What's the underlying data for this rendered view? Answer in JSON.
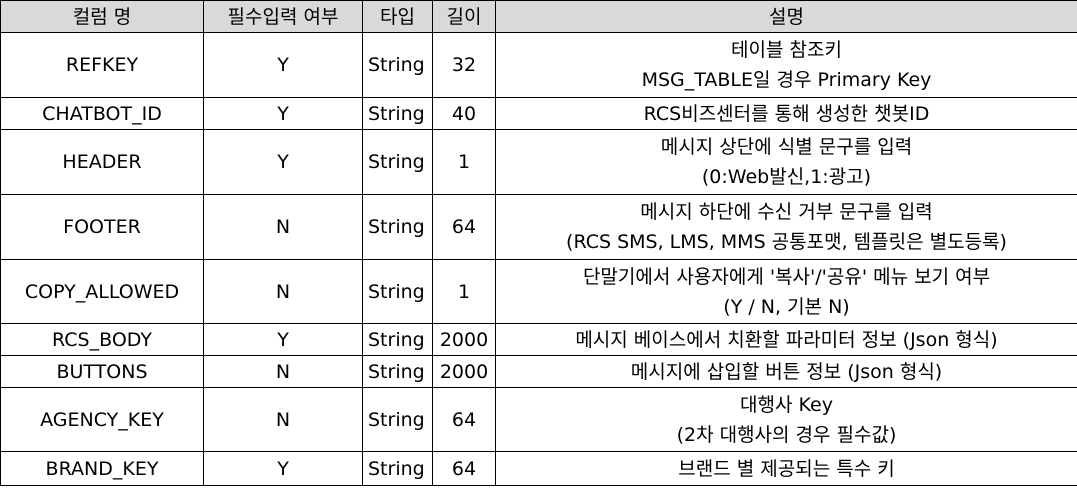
{
  "table": {
    "headers": {
      "column": "컬럼 명",
      "required": "필수입력 여부",
      "type": "타입",
      "length": "길이",
      "description": "설명"
    },
    "rows": [
      {
        "column": "REFKEY",
        "required": "Y",
        "type": "String",
        "length": "32",
        "desc": [
          "테이블 참조키",
          "MSG_TABLE일 경우 Primary Key"
        ]
      },
      {
        "column": "CHATBOT_ID",
        "required": "Y",
        "type": "String",
        "length": "40",
        "desc": [
          "RCS비즈센터를 통해 생성한 챗봇ID"
        ]
      },
      {
        "column": "HEADER",
        "required": "Y",
        "type": "String",
        "length": "1",
        "desc": [
          "메시지 상단에 식별 문구를 입력",
          "(0:Web발신,1:광고)"
        ]
      },
      {
        "column": "FOOTER",
        "required": "N",
        "type": "String",
        "length": "64",
        "desc": [
          "메시지 하단에 수신 거부 문구를 입력",
          "(RCS SMS, LMS, MMS 공통포맷, 템플릿은 별도등록)"
        ]
      },
      {
        "column": "COPY_ALLOWED",
        "required": "N",
        "type": "String",
        "length": "1",
        "desc": [
          "단말기에서 사용자에게 '복사'/'공유' 메뉴 보기 여부",
          "(Y / N, 기본 N)"
        ]
      },
      {
        "column": "RCS_BODY",
        "required": "Y",
        "type": "String",
        "length": "2000",
        "desc": [
          "메시지 베이스에서 치환할 파라미터 정보 (Json 형식)"
        ]
      },
      {
        "column": "BUTTONS",
        "required": "N",
        "type": "String",
        "length": "2000",
        "desc": [
          "메시지에 삽입할 버튼 정보 (Json 형식)"
        ]
      },
      {
        "column": "AGENCY_KEY",
        "required": "N",
        "type": "String",
        "length": "64",
        "desc": [
          "대행사 Key",
          "(2차 대행사의 경우 필수값)"
        ]
      },
      {
        "column": "BRAND_KEY",
        "required": "Y",
        "type": "String",
        "length": "64",
        "desc": [
          "브랜드 별 제공되는 특수 키"
        ]
      }
    ]
  }
}
